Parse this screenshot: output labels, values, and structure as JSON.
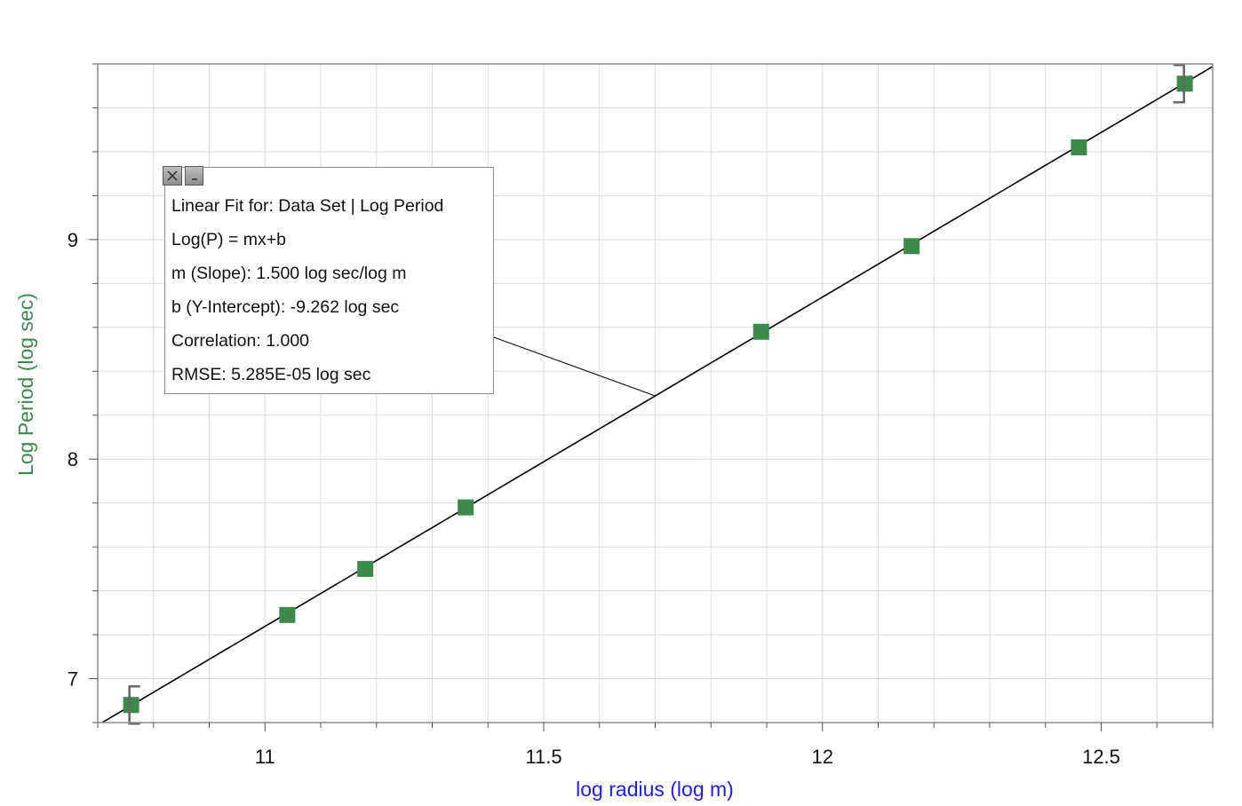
{
  "chart_data": {
    "type": "scatter",
    "xlabel": "log radius (log m)",
    "ylabel": "Log Period (log sec)",
    "xlim": [
      10.7,
      12.7
    ],
    "ylim": [
      6.8,
      9.8
    ],
    "x_ticks": [
      "11",
      "11.5",
      "12",
      "12.5"
    ],
    "y_ticks": [
      "7",
      "8",
      "9"
    ],
    "grid": true,
    "series": [
      {
        "x": [
          10.76,
          11.04,
          11.18,
          11.36,
          11.89,
          12.16,
          12.46,
          12.65
        ],
        "y": [
          6.88,
          7.29,
          7.5,
          7.78,
          8.58,
          8.97,
          9.42,
          9.71
        ]
      }
    ],
    "fit": {
      "slope": 1.5,
      "intercept": -9.262
    },
    "colors": {
      "points": "#3b8a4a",
      "xlabel": "#1a1aff",
      "ylabel": "#3b8a4a",
      "fit_line": "#000000",
      "grid": "#dcdcdc"
    }
  },
  "fit_box": {
    "close_icon": "close-icon",
    "minimize_icon": "minimize-icon",
    "lines": [
      "Linear Fit for: Data Set | Log Period",
      "Log(P) = mx+b",
      "m (Slope): 1.500 log sec/log m",
      "b (Y-Intercept): -9.262 log sec",
      "Correlation: 1.000",
      "RMSE: 5.285E-05 log sec"
    ]
  }
}
